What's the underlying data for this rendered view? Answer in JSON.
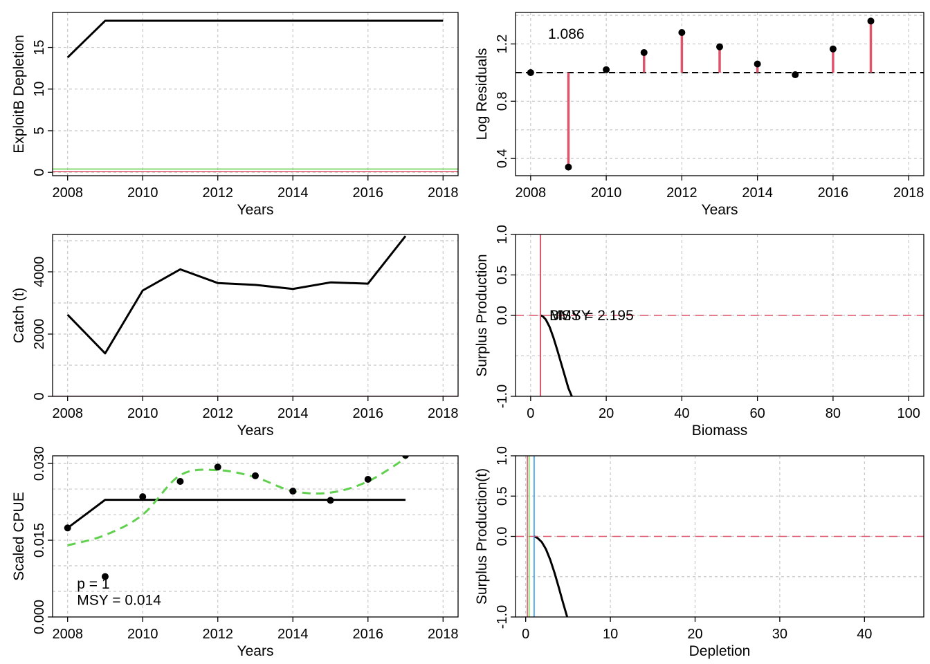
{
  "colors": {
    "black": "#000000",
    "red": "#DF536B",
    "green": "#61D04F",
    "blue": "#2297E6",
    "grid": "#c8c8c8"
  },
  "chart_data": [
    {
      "id": "p1",
      "type": "line",
      "xlabel": "Years",
      "ylabel": "ExploitB Depletion",
      "xlim": [
        2007.6,
        2018.4
      ],
      "ylim": [
        -0.4,
        19.2
      ],
      "xticks": [
        2008,
        2010,
        2012,
        2014,
        2016,
        2018
      ],
      "yticks": [
        0,
        5,
        10,
        15
      ],
      "xgrid": [
        2008,
        2010,
        2012,
        2014,
        2016,
        2018
      ],
      "ygrid": [
        0,
        5,
        10,
        15
      ],
      "grid": true,
      "series": [
        {
          "x": [
            2008,
            2009,
            2010,
            2011,
            2012,
            2013,
            2014,
            2015,
            2016,
            2017,
            2018
          ],
          "y": [
            13.8,
            18.2,
            18.2,
            18.2,
            18.2,
            18.2,
            18.2,
            18.2,
            18.2,
            18.2,
            18.2
          ],
          "color": "black",
          "width": 3
        },
        {
          "hline": 0.4,
          "color": "green",
          "width": 1.5
        },
        {
          "hline": 0.1,
          "color": "red",
          "width": 1.5
        }
      ]
    },
    {
      "id": "p2",
      "type": "scatter",
      "xlabel": "Years",
      "ylabel": "Log Residuals",
      "xlim": [
        2007.6,
        2018.4
      ],
      "ylim": [
        0.28,
        1.42
      ],
      "xticks": [
        2008,
        2010,
        2012,
        2014,
        2016,
        2018
      ],
      "yticks": [
        0.4,
        0.8,
        1.2
      ],
      "xgrid": [
        2008,
        2010,
        2012,
        2014,
        2016,
        2018
      ],
      "ygrid": [
        0.4,
        0.6,
        0.8,
        1.0,
        1.2,
        1.4
      ],
      "grid": true,
      "baseline": 1.0,
      "points": {
        "x": [
          2008,
          2009,
          2010,
          2011,
          2012,
          2013,
          2014,
          2015,
          2016,
          2017
        ],
        "y": [
          1.0,
          0.34,
          1.02,
          1.14,
          1.28,
          1.18,
          1.06,
          0.985,
          1.165,
          1.36
        ]
      },
      "annotation": "1.086"
    },
    {
      "id": "p3",
      "type": "line",
      "xlabel": "Years",
      "ylabel": "Catch (t)",
      "xlim": [
        2007.6,
        2018.4
      ],
      "ylim": [
        0,
        5200
      ],
      "xticks": [
        2008,
        2010,
        2012,
        2014,
        2016,
        2018
      ],
      "yticks": [
        0,
        2000,
        4000
      ],
      "xgrid": [
        2008,
        2010,
        2012,
        2014,
        2016,
        2018
      ],
      "ygrid": [
        1000,
        2000,
        3000,
        4000,
        5000
      ],
      "grid": true,
      "series": [
        {
          "x": [
            2008,
            2009,
            2010,
            2011,
            2012,
            2013,
            2014,
            2015,
            2016,
            2017
          ],
          "y": [
            2620,
            1380,
            3400,
            4080,
            3640,
            3580,
            3450,
            3660,
            3620,
            5150
          ],
          "color": "black",
          "width": 3
        },
        {
          "hline": 0,
          "color": "red",
          "width": 1.5
        }
      ]
    },
    {
      "id": "p4",
      "type": "line",
      "xlabel": "Biomass",
      "ylabel": "Surplus Production",
      "xlim": [
        -4,
        104
      ],
      "ylim": [
        -1.0,
        1.0
      ],
      "xticks": [
        0,
        20,
        40,
        60,
        80,
        100
      ],
      "yticks": [
        -1.0,
        0.0,
        0.5,
        1.0
      ],
      "ytick_labels": [
        "-1.0",
        "0.0",
        "0.5",
        "1.0"
      ],
      "xgrid": [
        0,
        20,
        40,
        60,
        80,
        100
      ],
      "ygrid": [
        -0.5,
        0.0,
        0.5
      ],
      "grid": true,
      "series": [
        {
          "x": [
            2.6,
            3.2,
            4.0,
            5.0,
            6.0,
            7.0,
            8.0,
            9.0,
            10.0,
            10.9
          ],
          "y": [
            0.0,
            -0.01,
            -0.05,
            -0.14,
            -0.27,
            -0.42,
            -0.58,
            -0.74,
            -0.9,
            -1.0
          ],
          "color": "black",
          "width": 3
        },
        {
          "hline": 0.0,
          "color": "red",
          "width": 1.5,
          "dash": true
        },
        {
          "vline": 2.6,
          "color": "red",
          "width": 2
        }
      ],
      "annotations": [
        {
          "text": "BMSY",
          "x": 5.0,
          "y": 0.0
        },
        {
          "text": "MSY = 2.195",
          "x": 5.0,
          "y": 0.0
        }
      ]
    },
    {
      "id": "p5",
      "type": "scatter",
      "xlabel": "Years",
      "ylabel": "Scaled CPUE",
      "xlim": [
        2007.6,
        2018.4
      ],
      "ylim": [
        0,
        0.0315
      ],
      "xticks": [
        2008,
        2010,
        2012,
        2014,
        2016,
        2018
      ],
      "yticks": [
        0.0,
        0.015,
        0.03
      ],
      "ytick_labels": [
        "0.000",
        "0.015",
        "0.030"
      ],
      "xgrid": [
        2008,
        2010,
        2012,
        2014,
        2016,
        2018
      ],
      "ygrid": [
        0.005,
        0.01,
        0.015,
        0.02,
        0.025,
        0.03
      ],
      "grid": true,
      "points": {
        "x": [
          2008,
          2009,
          2010,
          2011,
          2012,
          2013,
          2014,
          2015,
          2016,
          2017
        ],
        "y": [
          0.0174,
          0.0079,
          0.0235,
          0.0265,
          0.0293,
          0.0276,
          0.0246,
          0.0228,
          0.0269,
          0.0316
        ]
      },
      "series": [
        {
          "x": [
            2008,
            2009,
            2010,
            2011,
            2012,
            2013,
            2014,
            2015,
            2016,
            2017
          ],
          "y": [
            0.0174,
            0.0229,
            0.0229,
            0.0229,
            0.0229,
            0.0229,
            0.0229,
            0.0229,
            0.0229,
            0.0229
          ],
          "color": "black",
          "width": 3
        },
        {
          "x": [
            2008,
            2009,
            2010,
            2011,
            2012,
            2013,
            2014,
            2015,
            2016,
            2017
          ],
          "y": [
            0.014,
            0.016,
            0.02,
            0.0277,
            0.0287,
            0.0273,
            0.0246,
            0.0243,
            0.0265,
            0.031
          ],
          "color": "green",
          "width": 3,
          "dash": true,
          "smooth": true
        }
      ],
      "annotations": [
        {
          "text": "p = 1",
          "x": 2008.25,
          "y": 0.0065
        },
        {
          "text": "MSY = 0.014",
          "x": 2008.25,
          "y": 0.0033
        }
      ]
    },
    {
      "id": "p6",
      "type": "line",
      "xlabel": "Depletion",
      "ylabel": "Surplus Production(t)",
      "xlim": [
        -1.2,
        47
      ],
      "ylim": [
        -1.0,
        1.0
      ],
      "xticks": [
        0,
        10,
        20,
        30,
        40
      ],
      "yticks": [
        -1.0,
        0.0,
        0.5,
        1.0
      ],
      "ytick_labels": [
        "-1.0",
        "0.0",
        "0.5",
        "1.0"
      ],
      "xgrid": [
        0,
        10,
        20,
        30,
        40
      ],
      "ygrid": [
        -0.5,
        0.0,
        0.5
      ],
      "grid": true,
      "series": [
        {
          "x": [
            1.0,
            1.4,
            1.9,
            2.4,
            2.9,
            3.4,
            3.9,
            4.4,
            4.9
          ],
          "y": [
            0.0,
            -0.02,
            -0.07,
            -0.16,
            -0.29,
            -0.45,
            -0.63,
            -0.82,
            -1.0
          ],
          "color": "black",
          "width": 3
        },
        {
          "hline": 0.0,
          "color": "red",
          "width": 1.5,
          "dash": true
        },
        {
          "vline": 0.2,
          "color": "red",
          "width": 1.5
        },
        {
          "vline": 0.4,
          "color": "green",
          "width": 1.5
        },
        {
          "vline": 1.0,
          "color": "blue",
          "width": 1.5
        }
      ]
    }
  ]
}
